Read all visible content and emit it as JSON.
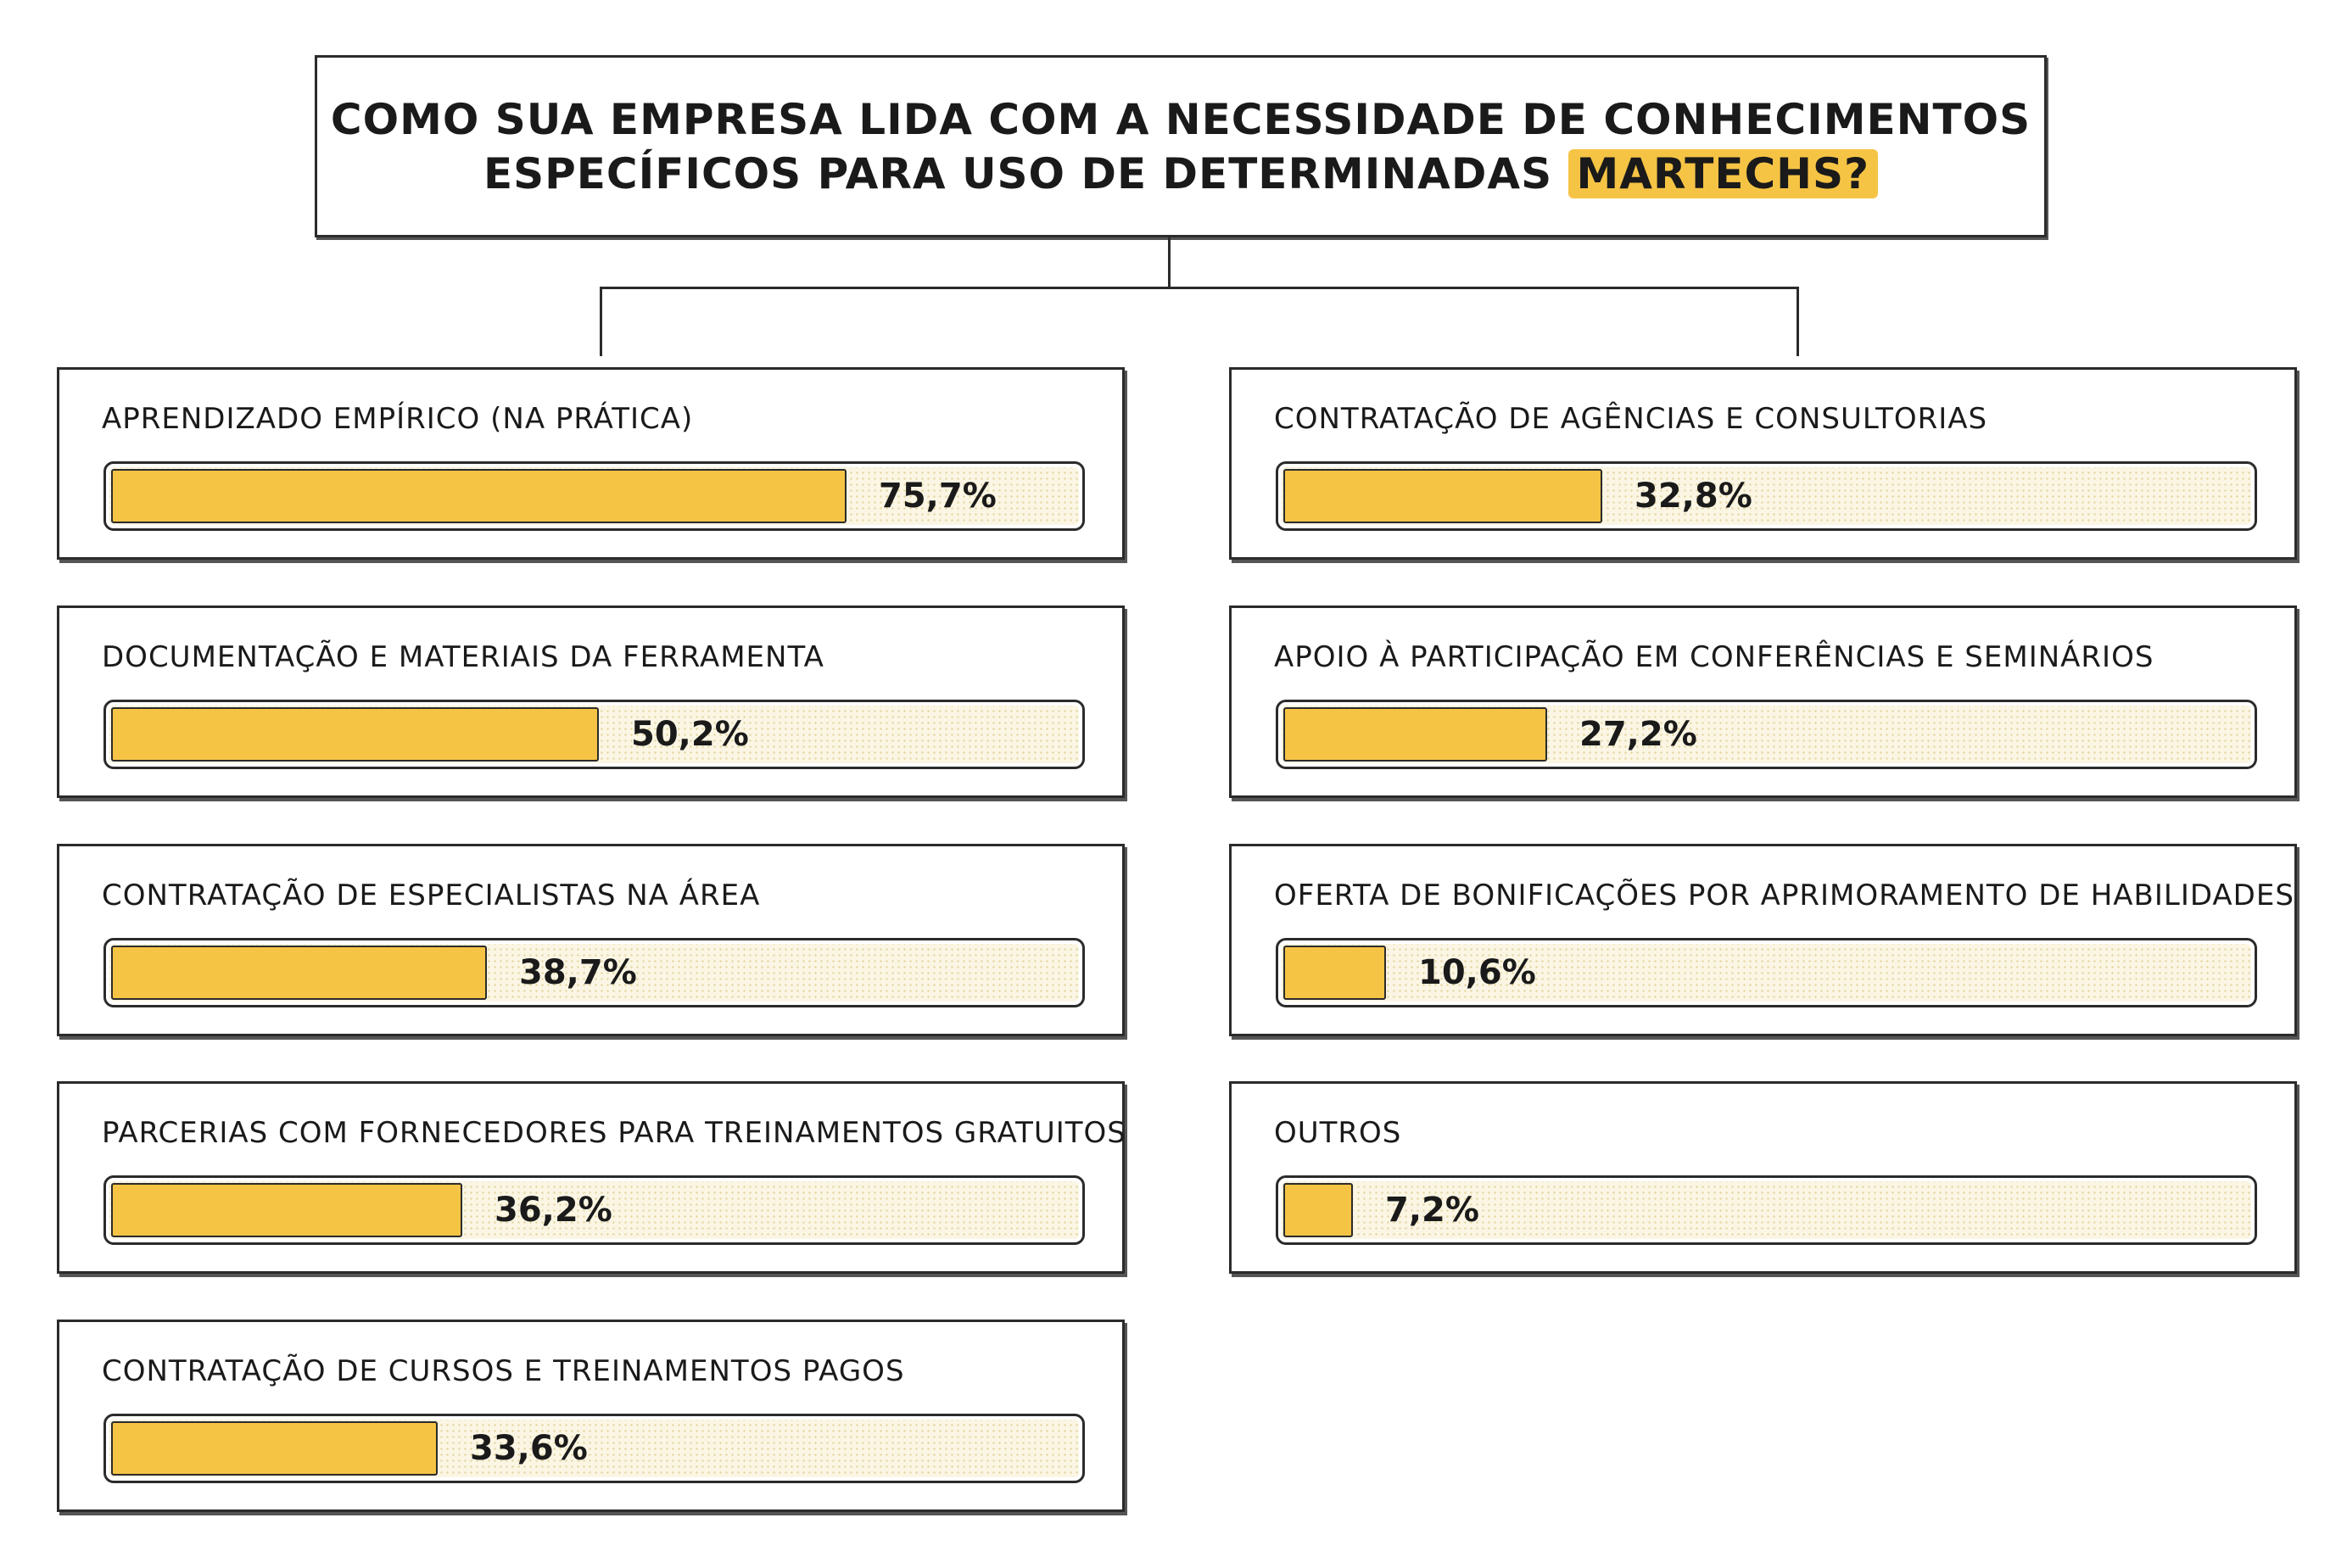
{
  "chart_data": {
    "type": "bar",
    "title_lines": [
      "COMO SUA EMPRESA LIDA COM A NECESSIDADE DE CONHECIMENTOS",
      "ESPECÍFICOS PARA USO DE DETERMINADAS"
    ],
    "title_highlight": "MARTECHS?",
    "categories": [
      "APRENDIZADO EMPÍRICO (NA PRÁTICA)",
      "DOCUMENTAÇÃO E MATERIAIS DA FERRAMENTA",
      "CONTRATAÇÃO DE ESPECIALISTAS NA ÁREA",
      "PARCERIAS COM FORNECEDORES PARA TREINAMENTOS GRATUITOS",
      "CONTRATAÇÃO DE CURSOS E TREINAMENTOS PAGOS",
      "CONTRATAÇÃO DE AGÊNCIAS E CONSULTORIAS",
      "APOIO À PARTICIPAÇÃO EM CONFERÊNCIAS E SEMINÁRIOS",
      "OFERTA DE BONIFICAÇÕES POR APRIMORAMENTO DE HABILIDADES",
      "OUTROS"
    ],
    "values": [
      75.7,
      50.2,
      38.7,
      36.2,
      33.6,
      32.8,
      27.2,
      10.6,
      7.2
    ],
    "value_labels": [
      "75,7%",
      "50,2%",
      "38,7%",
      "36,2%",
      "33,6%",
      "32,8%",
      "27,2%",
      "10,6%",
      "7,2%"
    ],
    "unit": "%",
    "xlim": [
      0,
      100
    ],
    "columns": [
      {
        "column": "left",
        "items": [
          0,
          1,
          2,
          3,
          4
        ]
      },
      {
        "column": "right",
        "items": [
          5,
          6,
          7,
          8
        ]
      }
    ],
    "colors": {
      "bar": "#f6c445",
      "track": "#fbf6e4",
      "highlight": "#f6c445",
      "border": "#2b2b2b"
    }
  }
}
